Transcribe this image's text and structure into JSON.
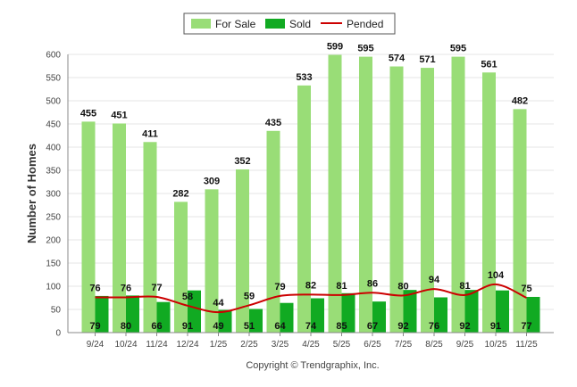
{
  "colors": {
    "for_sale": "#99dd77",
    "sold": "#11aa22",
    "pended": "#cc0000",
    "grid": "#e4e4e4",
    "axis": "#888888"
  },
  "copyright": "Copyright © Trendgraphix, Inc.",
  "chart_data": {
    "type": "bar",
    "title": "",
    "xlabel": "",
    "ylabel": "Number of Homes",
    "ylim": [
      0,
      600
    ],
    "yticks": [
      0,
      50,
      100,
      150,
      200,
      250,
      300,
      350,
      400,
      450,
      500,
      550,
      600
    ],
    "grid": true,
    "legend_position": "top-center",
    "categories": [
      "9/24",
      "10/24",
      "11/24",
      "12/24",
      "1/25",
      "2/25",
      "3/25",
      "4/25",
      "5/25",
      "6/25",
      "7/25",
      "8/25",
      "9/25",
      "10/25",
      "11/25"
    ],
    "series": [
      {
        "name": "For Sale",
        "kind": "bar",
        "values": [
          455,
          451,
          411,
          282,
          309,
          352,
          435,
          533,
          599,
          595,
          574,
          571,
          595,
          561,
          482
        ]
      },
      {
        "name": "Sold",
        "kind": "bar",
        "values": [
          79,
          80,
          66,
          91,
          49,
          51,
          64,
          74,
          85,
          67,
          92,
          76,
          92,
          91,
          77
        ]
      },
      {
        "name": "Pended",
        "kind": "line",
        "values": [
          76,
          76,
          77,
          58,
          44,
          59,
          79,
          82,
          81,
          86,
          80,
          94,
          81,
          104,
          75
        ]
      }
    ]
  }
}
